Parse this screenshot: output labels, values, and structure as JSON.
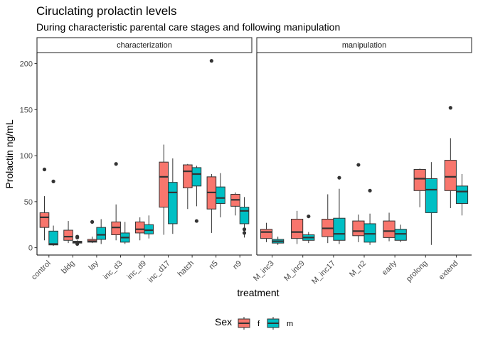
{
  "title": "Ciruclating prolactin levels",
  "subtitle": "During characteristic parental care stages and following manipulation",
  "chart_data": {
    "type": "boxplot",
    "xlabel": "treatment",
    "ylabel": "Prolactin ng/mL",
    "ylim": [
      -8,
      212
    ],
    "yticks": [
      0,
      50,
      100,
      150,
      200
    ],
    "facets": [
      {
        "label": "characterization",
        "categories": [
          "control",
          "bldg",
          "lay",
          "inc_d3",
          "inc_d9",
          "inc_d17",
          "hatch",
          "n5",
          "n9"
        ],
        "series": [
          {
            "name": "f",
            "boxes": [
              {
                "min": 8,
                "q1": 22,
                "median": 33,
                "q3": 38,
                "max": 56,
                "outliers": [
                  85
                ]
              },
              {
                "min": 5,
                "q1": 8,
                "median": 12,
                "q3": 19,
                "max": 29,
                "outliers": []
              },
              {
                "min": 5,
                "q1": 6,
                "median": 7,
                "q3": 9,
                "max": 12,
                "outliers": [
                  28
                ]
              },
              {
                "min": 8,
                "q1": 14,
                "median": 22,
                "q3": 28,
                "max": 47,
                "outliers": [
                  91
                ]
              },
              {
                "min": 8,
                "q1": 16,
                "median": 20,
                "q3": 28,
                "max": 33,
                "outliers": []
              },
              {
                "min": 14,
                "q1": 44,
                "median": 77,
                "q3": 93,
                "max": 112,
                "outliers": []
              },
              {
                "min": 42,
                "q1": 65,
                "median": 83,
                "q3": 90,
                "max": 91,
                "outliers": []
              },
              {
                "min": 16,
                "q1": 42,
                "median": 60,
                "q3": 77,
                "max": 80,
                "outliers": [
                  203
                ]
              },
              {
                "min": 35,
                "q1": 45,
                "median": 52,
                "q3": 58,
                "max": 60,
                "outliers": []
              }
            ]
          },
          {
            "name": "m",
            "boxes": [
              {
                "min": 2,
                "q1": 3,
                "median": 4,
                "q3": 18,
                "max": 24,
                "outliers": [
                  72
                ]
              },
              {
                "min": 4,
                "q1": 5,
                "median": 6,
                "q3": 7,
                "max": 8,
                "outliers": [
                  11,
                  12,
                  4
                ]
              },
              {
                "min": 4,
                "q1": 9,
                "median": 14,
                "q3": 22,
                "max": 31,
                "outliers": []
              },
              {
                "min": 4,
                "q1": 6,
                "median": 11,
                "q3": 16,
                "max": 28,
                "outliers": []
              },
              {
                "min": 10,
                "q1": 15,
                "median": 19,
                "q3": 25,
                "max": 35,
                "outliers": []
              },
              {
                "min": 15,
                "q1": 26,
                "median": 60,
                "q3": 71,
                "max": 97,
                "outliers": []
              },
              {
                "min": 45,
                "q1": 67,
                "median": 80,
                "q3": 87,
                "max": 89,
                "outliers": [
                  29
                ]
              },
              {
                "min": 33,
                "q1": 48,
                "median": 54,
                "q3": 66,
                "max": 81,
                "outliers": []
              },
              {
                "min": 11,
                "q1": 26,
                "median": 40,
                "q3": 44,
                "max": 55,
                "outliers": [
                  20,
                  16
                ]
              }
            ]
          }
        ]
      },
      {
        "label": "manipulation",
        "categories": [
          "M_inc3",
          "M_inc9",
          "M_inc17",
          "M_n2",
          "early",
          "prolong",
          "extend"
        ],
        "series": [
          {
            "name": "f",
            "boxes": [
              {
                "min": 6,
                "q1": 10,
                "median": 17,
                "q3": 20,
                "max": 27,
                "outliers": []
              },
              {
                "min": 4,
                "q1": 10,
                "median": 17,
                "q3": 31,
                "max": 40,
                "outliers": []
              },
              {
                "min": 5,
                "q1": 12,
                "median": 21,
                "q3": 31,
                "max": 58,
                "outliers": []
              },
              {
                "min": 6,
                "q1": 13,
                "median": 18,
                "q3": 29,
                "max": 36,
                "outliers": [
                  90
                ]
              },
              {
                "min": 7,
                "q1": 11,
                "median": 18,
                "q3": 29,
                "max": 38,
                "outliers": []
              },
              {
                "min": 44,
                "q1": 62,
                "median": 75,
                "q3": 85,
                "max": 86,
                "outliers": []
              },
              {
                "min": 43,
                "q1": 62,
                "median": 77,
                "q3": 95,
                "max": 119,
                "outliers": [
                  152
                ]
              }
            ]
          },
          {
            "name": "m",
            "boxes": [
              {
                "min": 3,
                "q1": 5,
                "median": 7,
                "q3": 9,
                "max": 12,
                "outliers": []
              },
              {
                "min": 5,
                "q1": 8,
                "median": 11,
                "q3": 14,
                "max": 17,
                "outliers": [
                  34
                ]
              },
              {
                "min": 4,
                "q1": 8,
                "median": 15,
                "q3": 32,
                "max": 64,
                "outliers": [
                  76
                ]
              },
              {
                "min": 3,
                "q1": 6,
                "median": 15,
                "q3": 26,
                "max": 37,
                "outliers": [
                  62
                ]
              },
              {
                "min": 6,
                "q1": 8,
                "median": 15,
                "q3": 20,
                "max": 25,
                "outliers": []
              },
              {
                "min": 3,
                "q1": 38,
                "median": 63,
                "q3": 75,
                "max": 93,
                "outliers": []
              },
              {
                "min": 35,
                "q1": 48,
                "median": 61,
                "q3": 67,
                "max": 80,
                "outliers": []
              }
            ]
          }
        ]
      }
    ],
    "legend": {
      "title": "Sex",
      "position": "bottom",
      "entries": [
        {
          "name": "f",
          "color": "#F8766D"
        },
        {
          "name": "m",
          "color": "#00BFC4"
        }
      ]
    },
    "grid": false
  }
}
